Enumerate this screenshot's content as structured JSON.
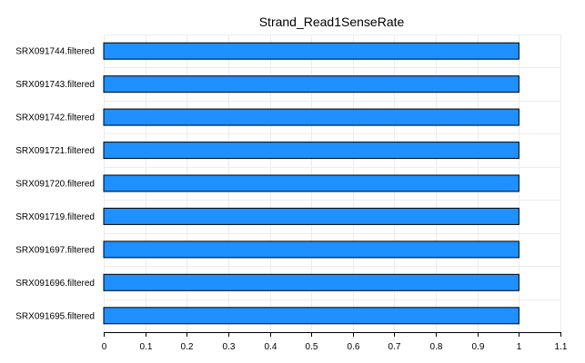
{
  "chart_data": {
    "type": "bar",
    "orientation": "horizontal",
    "title": "Strand_Read1SenseRate",
    "categories": [
      "SRX091744.filtered",
      "SRX091743.filtered",
      "SRX091742.filtered",
      "SRX091721.filtered",
      "SRX091720.filtered",
      "SRX091719.filtered",
      "SRX091697.filtered",
      "SRX091696.filtered",
      "SRX091695.filtered"
    ],
    "values": [
      1,
      1,
      1,
      1,
      1,
      1,
      1,
      1,
      1
    ],
    "xlim": [
      0,
      1.1
    ],
    "xticks": [
      "0",
      "0.1",
      "0.2",
      "0.3",
      "0.4",
      "0.5",
      "0.6",
      "0.7",
      "0.8",
      "0.9",
      "1",
      "1.1"
    ],
    "grid": true,
    "bar_color": "#1e90ff",
    "bar_edge_color": "#000000",
    "grid_color": "#ececec"
  }
}
